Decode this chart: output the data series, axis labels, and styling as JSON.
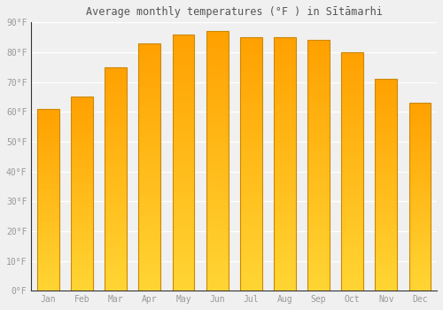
{
  "title": "Average monthly temperatures (°F ) in Sītāmarhi",
  "months": [
    "Jan",
    "Feb",
    "Mar",
    "Apr",
    "May",
    "Jun",
    "Jul",
    "Aug",
    "Sep",
    "Oct",
    "Nov",
    "Dec"
  ],
  "values": [
    61,
    65,
    75,
    83,
    86,
    87,
    85,
    85,
    84,
    80,
    71,
    63
  ],
  "ylim": [
    0,
    90
  ],
  "yticks": [
    0,
    10,
    20,
    30,
    40,
    50,
    60,
    70,
    80,
    90
  ],
  "ytick_labels": [
    "0°F",
    "10°F",
    "20°F",
    "30°F",
    "40°F",
    "50°F",
    "60°F",
    "70°F",
    "80°F",
    "90°F"
  ],
  "background_color": "#f0f0f0",
  "grid_color": "#ffffff",
  "font_color": "#999999",
  "title_color": "#555555",
  "bar_color_bottom": "#FFD533",
  "bar_color_top": "#FFA000",
  "bar_border_color": "#CC8800"
}
